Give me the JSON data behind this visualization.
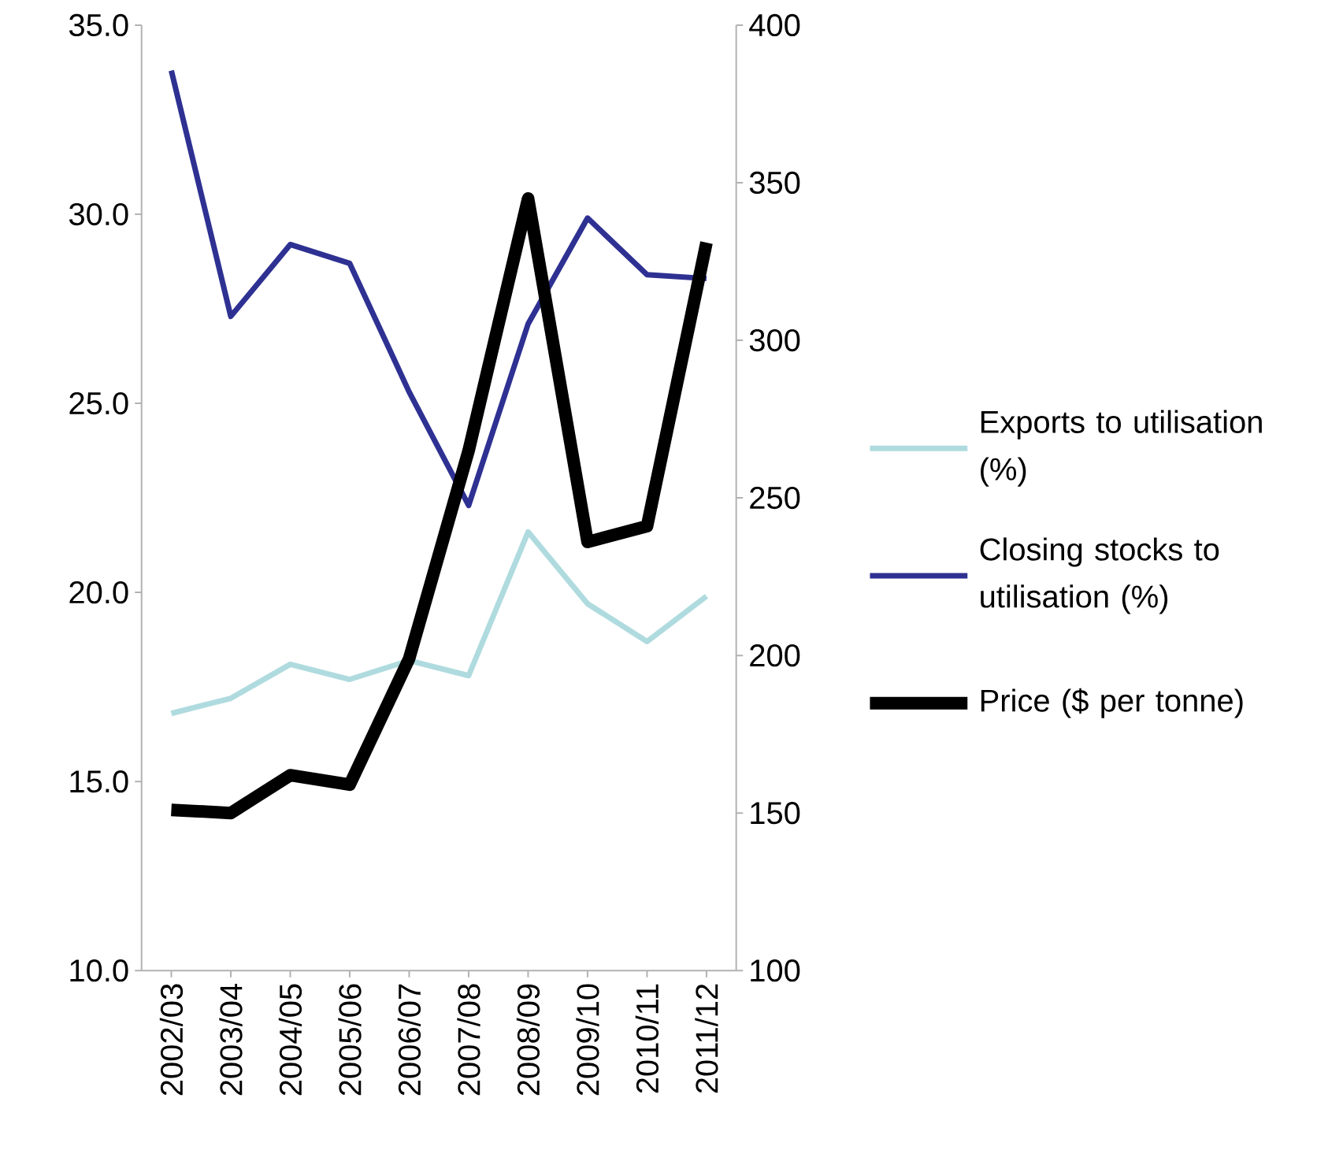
{
  "chart_data": {
    "type": "line",
    "categories": [
      "2002/03",
      "2003/04",
      "2004/05",
      "2005/06",
      "2006/07",
      "2007/08",
      "2008/09",
      "2009/10",
      "2010/11",
      "2011/12"
    ],
    "series": [
      {
        "name": "Exports to utilisation (%)",
        "color": "#afdbdf",
        "values": [
          16.8,
          17.2,
          18.1,
          17.7,
          18.2,
          17.8,
          21.6,
          19.7,
          18.7,
          19.9
        ]
      },
      {
        "name": "Closing stocks to utilisation (%)",
        "color": "#2e3192",
        "values": [
          33.8,
          27.3,
          29.2,
          28.7,
          25.3,
          22.3,
          27.1,
          29.9,
          28.4,
          28.3
        ]
      },
      {
        "name": "Price ($ per tonne)",
        "color": "#000000",
        "axis": "y2",
        "values": [
          151,
          150,
          162,
          159,
          199,
          265,
          345,
          236,
          241,
          331
        ]
      }
    ],
    "ylim": [
      10,
      35
    ],
    "yticks": [
      {
        "value": 10,
        "label": "10.0"
      },
      {
        "value": 15,
        "label": "15.0"
      },
      {
        "value": 20,
        "label": "20.0"
      },
      {
        "value": 25,
        "label": "25.0"
      },
      {
        "value": 30,
        "label": "30.0"
      },
      {
        "value": 35,
        "label": "35.0"
      }
    ],
    "y2lim": [
      100,
      400
    ],
    "y2ticks": [
      100,
      150,
      200,
      250,
      300,
      350,
      400
    ],
    "legend": "right",
    "grid": false,
    "line_style": "solid",
    "marker": "none"
  }
}
